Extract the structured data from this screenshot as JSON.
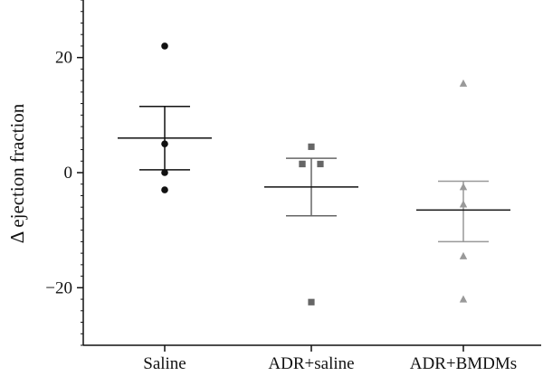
{
  "chart_data": {
    "type": "scatter",
    "ylabel": "Δ ejection fraction",
    "xlabel": "",
    "ylim": [
      -30,
      30
    ],
    "yticks": [
      -20,
      0,
      20
    ],
    "yticklabels": [
      "−20",
      "0",
      "20"
    ],
    "categories": [
      "Saline",
      "ADR+saline",
      "ADR+BMDMs"
    ],
    "grid": false,
    "series": [
      {
        "category": "Saline",
        "marker": "circle",
        "color": "#111111",
        "points": [
          22,
          5,
          0,
          -3
        ],
        "mean": 6,
        "error_upper": 11.5,
        "error_lower": 0.5
      },
      {
        "category": "ADR+saline",
        "marker": "square",
        "color": "#666666",
        "points": [
          4.5,
          1.5,
          1.5,
          1.5,
          -22.5
        ],
        "mean": -2.5,
        "error_upper": 2.5,
        "error_lower": -7.5
      },
      {
        "category": "ADR+BMDMs",
        "marker": "triangle",
        "color": "#999999",
        "points": [
          15.5,
          -2.5,
          -5.5,
          -14.5,
          -22
        ],
        "mean": -6.5,
        "error_upper": -1.5,
        "error_lower": -12
      }
    ]
  }
}
